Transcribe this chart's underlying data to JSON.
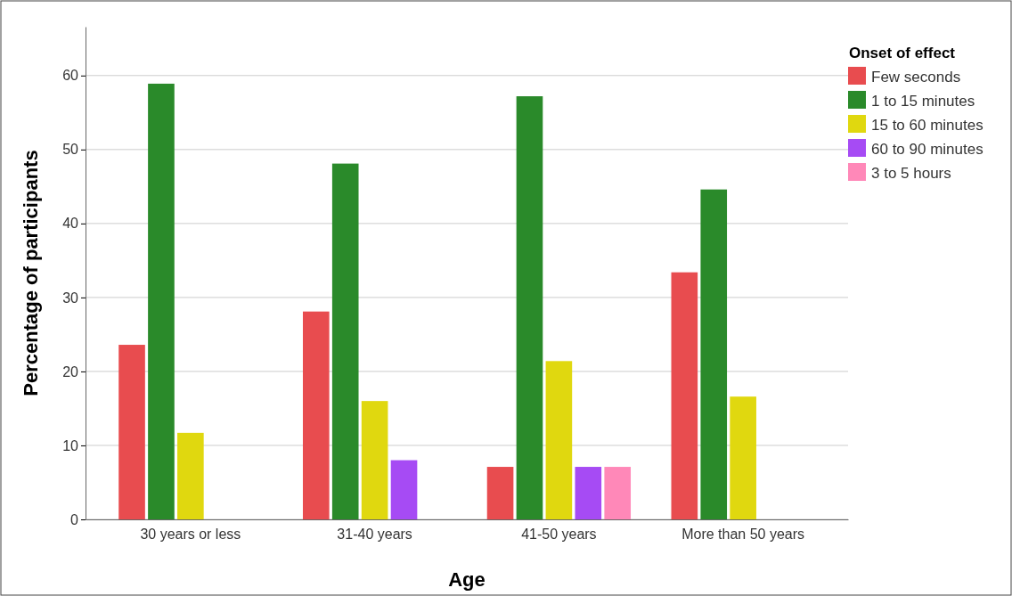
{
  "chart_data": {
    "type": "bar",
    "xlabel": "Age",
    "ylabel": "Percentage of participants",
    "legend_title": "Onset of effect",
    "categories": [
      "30 years or less",
      "31-40 years",
      "41-50 years",
      "More than 50 years"
    ],
    "series": [
      {
        "name": "Few seconds",
        "color": "#e84c4f",
        "values": [
          23.6,
          28.1,
          7.1,
          33.4
        ]
      },
      {
        "name": "1 to 15 minutes",
        "color": "#2a8a2a",
        "values": [
          58.9,
          48.1,
          57.2,
          44.6
        ]
      },
      {
        "name": "15 to 60 minutes",
        "color": "#e0d80f",
        "values": [
          11.7,
          16.0,
          21.4,
          16.6
        ]
      },
      {
        "name": "60 to 90 minutes",
        "color": "#a64bf4",
        "values": [
          null,
          8.0,
          7.1,
          null
        ]
      },
      {
        "name": "3 to 5 hours",
        "color": "#ff88b8",
        "values": [
          null,
          null,
          7.1,
          null
        ]
      }
    ],
    "ylim": [
      0,
      66.6
    ],
    "yticks": [
      0,
      10,
      20,
      30,
      40,
      50,
      60
    ],
    "grid": "y",
    "legend": "top right"
  }
}
